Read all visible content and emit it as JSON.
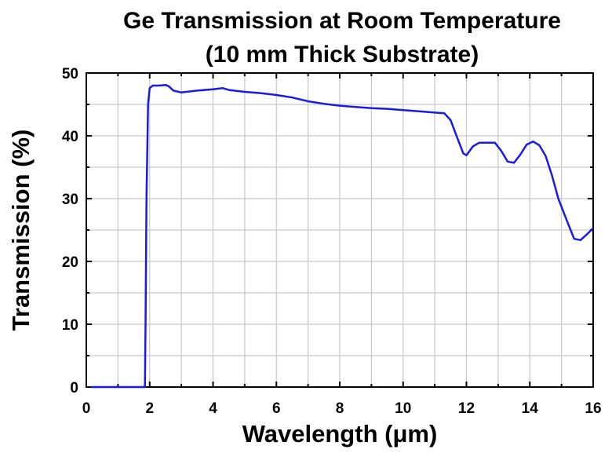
{
  "chart_data": {
    "type": "line",
    "title_line1": "Ge Transmission at Room Temperature",
    "title_line2": "(10 mm Thick Substrate)",
    "xlabel": "Wavelength (μm)",
    "ylabel": "Transmission (%)",
    "xlim": [
      0,
      16
    ],
    "ylim": [
      0,
      50
    ],
    "xticks": [
      0,
      2,
      4,
      6,
      8,
      10,
      12,
      14,
      16
    ],
    "yticks": [
      0,
      10,
      20,
      30,
      40,
      50
    ],
    "grid": true,
    "line_color": "#1a1ae6",
    "series": [
      {
        "x": [
          0.15,
          1.5,
          1.85,
          1.87,
          1.9,
          1.95,
          2.0,
          2.1,
          2.3,
          2.5,
          2.6,
          2.75,
          3.0,
          3.5,
          4.0,
          4.3,
          4.5,
          5.0,
          5.5,
          6.0,
          6.5,
          7.0,
          7.5,
          8.0,
          8.5,
          9.0,
          9.5,
          10.0,
          10.5,
          11.0,
          11.3,
          11.5,
          11.7,
          11.9,
          12.0,
          12.2,
          12.4,
          12.7,
          12.9,
          13.1,
          13.3,
          13.5,
          13.7,
          13.9,
          14.1,
          14.3,
          14.5,
          14.7,
          14.9,
          15.2,
          15.4,
          15.6,
          15.8,
          16.0
        ],
        "y": [
          0,
          0,
          0,
          10,
          30,
          45,
          47.6,
          48.0,
          48.0,
          48.1,
          47.9,
          47.2,
          46.9,
          47.2,
          47.4,
          47.6,
          47.3,
          47.0,
          46.8,
          46.5,
          46.1,
          45.5,
          45.1,
          44.8,
          44.6,
          44.4,
          44.3,
          44.1,
          43.9,
          43.7,
          43.6,
          42.5,
          39.8,
          37.2,
          36.9,
          38.3,
          38.9,
          38.9,
          38.9,
          37.6,
          35.9,
          35.7,
          37.0,
          38.6,
          39.1,
          38.5,
          36.8,
          33.7,
          30.0,
          26.1,
          23.6,
          23.4,
          24.3,
          25.3
        ]
      }
    ]
  }
}
